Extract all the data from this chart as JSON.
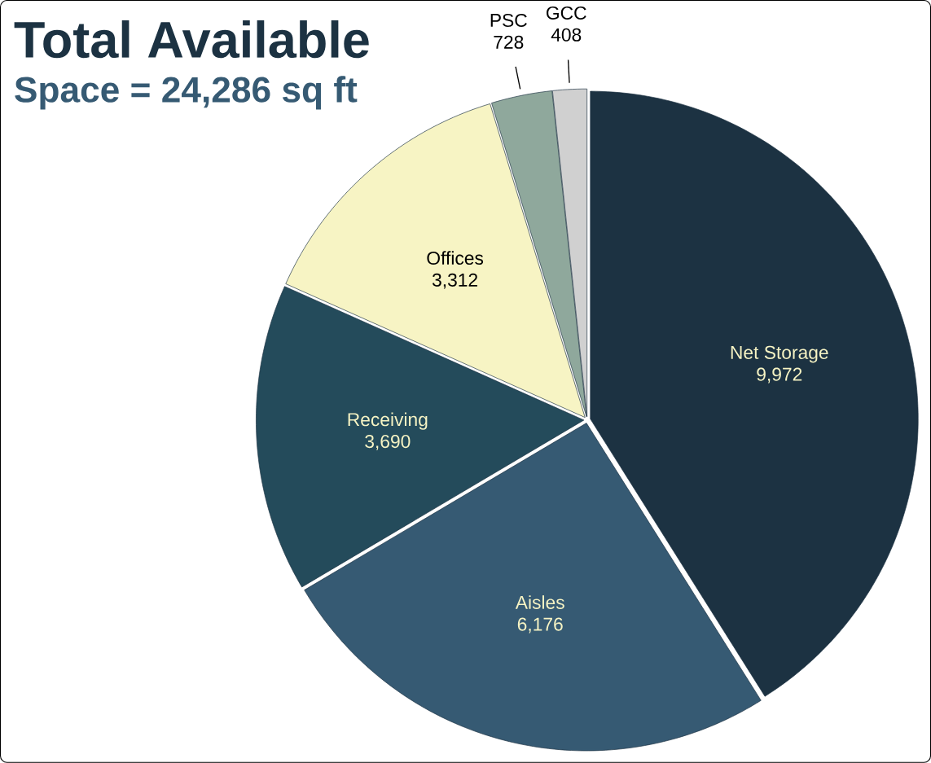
{
  "chart_data": {
    "type": "pie",
    "title": "Total Available",
    "subtitle": "Space = 24,286 sq ft",
    "categories": [
      "Net Storage",
      "Aisles",
      "Receiving",
      "Offices",
      "PSC",
      "GCC"
    ],
    "values": [
      9972,
      6176,
      3690,
      3312,
      728,
      408
    ],
    "colors": [
      "#1c3242",
      "#365a73",
      "#244b5b",
      "#f7f4c4",
      "#8fa89c",
      "#d0d0d0"
    ],
    "value_labels": [
      "9,972",
      "6,176",
      "3,690",
      "3,312",
      "728",
      "408"
    ]
  }
}
